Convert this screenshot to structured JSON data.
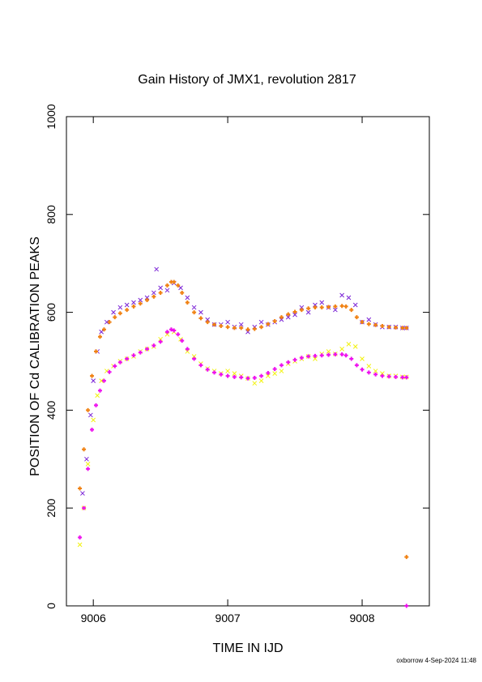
{
  "chart_data": {
    "type": "scatter",
    "title": "Gain History of JMX1, revolution 2817",
    "xlabel": "TIME IN IJD",
    "ylabel": "POSITION OF Cd CALIBRATION PEAKS",
    "xlim": [
      9005.8,
      9008.5
    ],
    "ylim": [
      0,
      1000
    ],
    "x_ticks": [
      9006,
      9007,
      9008
    ],
    "x_tick_labels": [
      "9006",
      "9007",
      "9008"
    ],
    "y_ticks": [
      0,
      200,
      400,
      600,
      800,
      1000
    ],
    "y_tick_labels": [
      "0",
      "200",
      "400",
      "600",
      "800",
      "1000"
    ],
    "grid": false,
    "legend": "none",
    "series": [
      {
        "marker": "x",
        "color": "#7a22d6",
        "x": [
          9005.92,
          9005.95,
          9005.98,
          9006.0,
          9006.03,
          9006.06,
          9006.1,
          9006.15,
          9006.2,
          9006.25,
          9006.3,
          9006.35,
          9006.4,
          9006.45,
          9006.47,
          9006.5,
          9006.55,
          9006.6,
          9006.65,
          9006.7,
          9006.75,
          9006.8,
          9006.85,
          9006.9,
          9006.95,
          9007.0,
          9007.05,
          9007.1,
          9007.15,
          9007.2,
          9007.25,
          9007.3,
          9007.35,
          9007.4,
          9007.45,
          9007.5,
          9007.55,
          9007.6,
          9007.65,
          9007.7,
          9007.75,
          9007.8,
          9007.85,
          9007.9,
          9007.95,
          9008.0,
          9008.05,
          9008.1,
          9008.15,
          9008.2,
          9008.25,
          9008.3,
          9008.33
        ],
        "y": [
          230,
          300,
          390,
          460,
          520,
          560,
          580,
          600,
          610,
          615,
          620,
          625,
          630,
          640,
          688,
          650,
          645,
          660,
          650,
          630,
          610,
          600,
          585,
          575,
          575,
          580,
          570,
          575,
          560,
          570,
          580,
          575,
          580,
          585,
          590,
          595,
          610,
          600,
          615,
          620,
          610,
          605,
          635,
          630,
          615,
          580,
          585,
          575,
          570,
          570,
          570,
          568,
          568
        ]
      },
      {
        "marker": "x",
        "color": "#f2f20c",
        "x": [
          9005.9,
          9005.93,
          9005.96,
          9006.0,
          9006.03,
          9006.06,
          9006.1,
          9006.15,
          9006.2,
          9006.25,
          9006.3,
          9006.35,
          9006.4,
          9006.45,
          9006.5,
          9006.55,
          9006.6,
          9006.65,
          9006.7,
          9006.75,
          9006.8,
          9006.85,
          9006.9,
          9006.95,
          9007.0,
          9007.05,
          9007.1,
          9007.15,
          9007.2,
          9007.25,
          9007.3,
          9007.35,
          9007.4,
          9007.45,
          9007.5,
          9007.55,
          9007.6,
          9007.65,
          9007.7,
          9007.75,
          9007.8,
          9007.85,
          9007.9,
          9007.95,
          9008.0,
          9008.05,
          9008.1,
          9008.15,
          9008.2,
          9008.25,
          9008.3,
          9008.33
        ],
        "y": [
          125,
          200,
          290,
          380,
          430,
          460,
          480,
          490,
          500,
          505,
          510,
          520,
          525,
          530,
          545,
          555,
          560,
          545,
          520,
          510,
          495,
          485,
          480,
          475,
          480,
          475,
          470,
          465,
          455,
          460,
          470,
          475,
          480,
          495,
          500,
          505,
          510,
          505,
          515,
          520,
          515,
          525,
          535,
          530,
          505,
          490,
          480,
          475,
          470,
          470,
          468,
          468
        ]
      },
      {
        "marker": "+",
        "color": "#f08010",
        "x": [
          9005.9,
          9005.93,
          9005.96,
          9005.99,
          9006.02,
          9006.05,
          9006.08,
          9006.12,
          9006.16,
          9006.2,
          9006.25,
          9006.3,
          9006.35,
          9006.4,
          9006.45,
          9006.5,
          9006.55,
          9006.58,
          9006.6,
          9006.63,
          9006.66,
          9006.7,
          9006.75,
          9006.8,
          9006.85,
          9006.9,
          9006.95,
          9007.0,
          9007.05,
          9007.1,
          9007.15,
          9007.2,
          9007.25,
          9007.3,
          9007.35,
          9007.4,
          9007.45,
          9007.5,
          9007.55,
          9007.6,
          9007.65,
          9007.7,
          9007.75,
          9007.8,
          9007.85,
          9007.88,
          9007.92,
          9007.96,
          9008.0,
          9008.05,
          9008.1,
          9008.15,
          9008.2,
          9008.25,
          9008.3,
          9008.33,
          9008.33
        ],
        "y": [
          240,
          320,
          400,
          470,
          520,
          550,
          565,
          580,
          590,
          598,
          605,
          612,
          618,
          625,
          632,
          640,
          655,
          662,
          662,
          655,
          640,
          620,
          600,
          588,
          580,
          575,
          572,
          570,
          568,
          568,
          565,
          566,
          570,
          576,
          582,
          590,
          596,
          601,
          605,
          608,
          610,
          610,
          611,
          612,
          613,
          612,
          605,
          590,
          580,
          576,
          574,
          572,
          570,
          569,
          568,
          568,
          100
        ]
      },
      {
        "marker": "+",
        "color": "#ee10ee",
        "x": [
          9005.9,
          9005.93,
          9005.96,
          9005.99,
          9006.02,
          9006.05,
          9006.08,
          9006.12,
          9006.16,
          9006.2,
          9006.25,
          9006.3,
          9006.35,
          9006.4,
          9006.45,
          9006.5,
          9006.55,
          9006.58,
          9006.6,
          9006.63,
          9006.66,
          9006.7,
          9006.75,
          9006.8,
          9006.85,
          9006.9,
          9006.95,
          9007.0,
          9007.05,
          9007.1,
          9007.15,
          9007.2,
          9007.25,
          9007.3,
          9007.35,
          9007.4,
          9007.45,
          9007.5,
          9007.55,
          9007.6,
          9007.65,
          9007.7,
          9007.75,
          9007.8,
          9007.85,
          9007.88,
          9007.92,
          9007.96,
          9008.0,
          9008.05,
          9008.1,
          9008.15,
          9008.2,
          9008.25,
          9008.3,
          9008.33,
          9008.33
        ],
        "y": [
          140,
          200,
          280,
          360,
          410,
          440,
          460,
          478,
          490,
          498,
          505,
          512,
          518,
          525,
          532,
          540,
          560,
          565,
          563,
          555,
          542,
          525,
          505,
          492,
          483,
          477,
          473,
          470,
          468,
          467,
          465,
          466,
          470,
          476,
          484,
          492,
          498,
          503,
          507,
          510,
          511,
          512,
          513,
          514,
          514,
          512,
          505,
          492,
          483,
          477,
          473,
          470,
          469,
          468,
          467,
          467,
          0
        ]
      }
    ],
    "footer": "oxborrow  4-Sep-2024 11:48"
  }
}
